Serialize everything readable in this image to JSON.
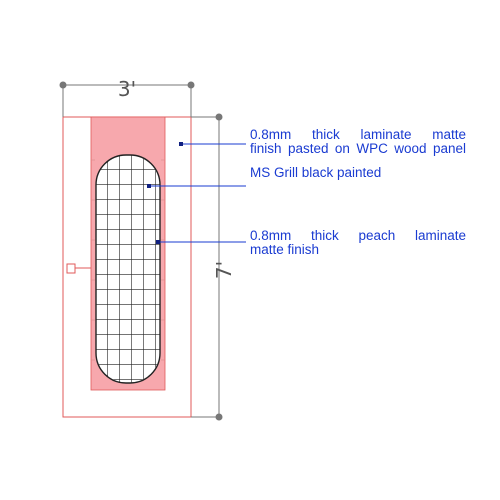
{
  "dimensions": {
    "width_label": "3'",
    "height_label": "7'"
  },
  "annotations": [
    {
      "id": "laminate-matte",
      "line1": "0.8mm thick laminate matte",
      "line2": "finish pasted on WPC wood panel"
    },
    {
      "id": "ms-grill",
      "line1": "MS Grill black painted",
      "line2": ""
    },
    {
      "id": "peach-laminate",
      "line1": "0.8mm thick peach laminate",
      "line2": "matte finish"
    }
  ],
  "colors": {
    "door_outline": "#e05a5a",
    "peach_panel": "#f7a8ad",
    "grill": "#222222",
    "annotation": "#1a3bd1",
    "dimension": "#666666"
  }
}
